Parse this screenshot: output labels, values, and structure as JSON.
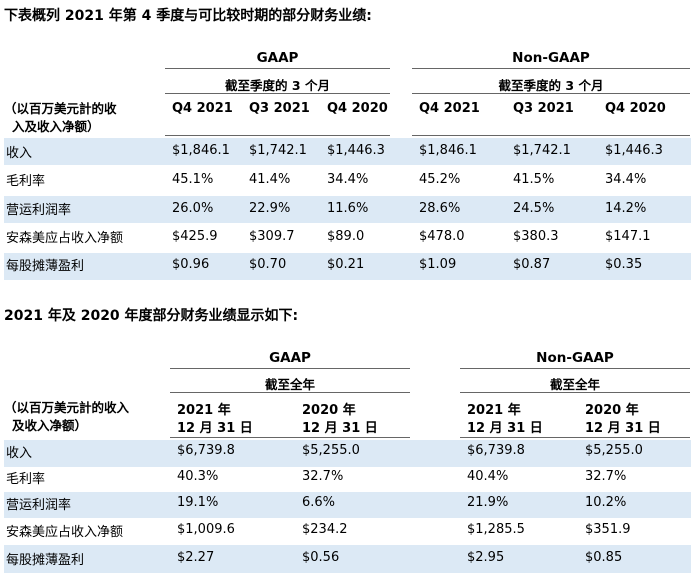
{
  "t1": {
    "title": "下表概列 2021 年第 4 季度与可比较时期的部分财务业绩:",
    "gaap": "GAAP",
    "nongaap": "Non-GAAP",
    "period_gaap": "截至季度的 3 个月",
    "period_nongaap": "截至季度的 3 个月",
    "units_line1": "（以百万美元計的收",
    "units_line2": "入及收入净额）",
    "cols": [
      "Q4 2021",
      "Q3 2021",
      "Q4 2020",
      "Q4 2021",
      "Q3 2021",
      "Q4 2020"
    ],
    "rows": [
      {
        "label": "收入",
        "v": [
          "$1,846.1",
          "$1,742.1",
          "$1,446.3",
          "$1,846.1",
          "$1,742.1",
          "$1,446.3"
        ]
      },
      {
        "label": "毛利率",
        "v": [
          "45.1%",
          "41.4%",
          "34.4%",
          "45.2%",
          "41.5%",
          "34.4%"
        ]
      },
      {
        "label": "营运利润率",
        "v": [
          "26.0%",
          "22.9%",
          "11.6%",
          "28.6%",
          "24.5%",
          "14.2%"
        ]
      },
      {
        "label": "安森美应占收入净额",
        "v": [
          "$425.9",
          "$309.7",
          "$89.0",
          "$478.0",
          "$380.3",
          "$147.1"
        ]
      },
      {
        "label": "每股摊薄盈利",
        "v": [
          "$0.96",
          "$0.70",
          "$0.21",
          "$1.09",
          "$0.87",
          "$0.35"
        ]
      }
    ]
  },
  "t2": {
    "title": "2021 年及 2020 年度部分财务业绩显示如下:",
    "gaap": "GAAP",
    "nongaap": "Non-GAAP",
    "period_gaap": "截至全年",
    "period_nongaap": "截至全年",
    "units_line1": "（以百万美元計的收入",
    "units_line2": "及收入净额）",
    "cols": [
      {
        "l1": "2021 年",
        "l2": "12 月 31 日"
      },
      {
        "l1": "2020 年",
        "l2": "12 月 31 日"
      },
      {
        "l1": "2021 年",
        "l2": "12 月 31 日"
      },
      {
        "l1": "2020 年",
        "l2": "12 月 31 日"
      }
    ],
    "rows": [
      {
        "label": "收入",
        "v": [
          "$6,739.8",
          "$5,255.0",
          "$6,739.8",
          "$5,255.0"
        ]
      },
      {
        "label": "毛利率",
        "v": [
          "40.3%",
          "32.7%",
          "40.4%",
          "32.7%"
        ]
      },
      {
        "label": "营运利润率",
        "v": [
          "19.1%",
          "6.6%",
          "21.9%",
          "10.2%"
        ]
      },
      {
        "label": "安森美应占收入净额",
        "v": [
          "$1,009.6",
          "$234.2",
          "$1,285.5",
          "$351.9"
        ]
      },
      {
        "label": "每股摊薄盈利",
        "v": [
          "$2.27",
          "$0.56",
          "$2.95",
          "$0.85"
        ]
      }
    ]
  }
}
